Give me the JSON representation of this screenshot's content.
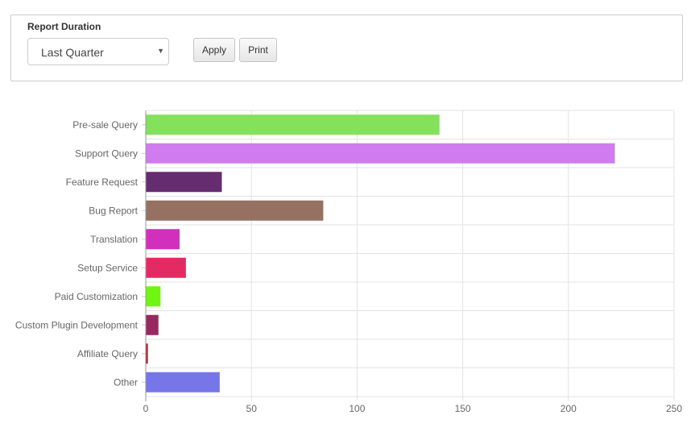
{
  "filter": {
    "label": "Report Duration",
    "selected": "Last Quarter",
    "apply_label": "Apply",
    "print_label": "Print"
  },
  "chart_data": {
    "type": "bar",
    "orientation": "horizontal",
    "categories": [
      "Pre-sale Query",
      "Support Query",
      "Feature Request",
      "Bug Report",
      "Translation",
      "Setup Service",
      "Paid Customization",
      "Custom Plugin Development",
      "Affiliate Query",
      "Other"
    ],
    "values": [
      139,
      222,
      36,
      84,
      16,
      19,
      7,
      6,
      1,
      35
    ],
    "colors": [
      "#83e15c",
      "#d07bef",
      "#652c6f",
      "#967162",
      "#d22fbd",
      "#e42a63",
      "#6ff50f",
      "#98285f",
      "#b41c23",
      "#7676e8"
    ],
    "xticks": [
      "0",
      "50",
      "100",
      "150",
      "200",
      "250"
    ],
    "xlim": [
      0,
      250
    ],
    "grid": true
  }
}
